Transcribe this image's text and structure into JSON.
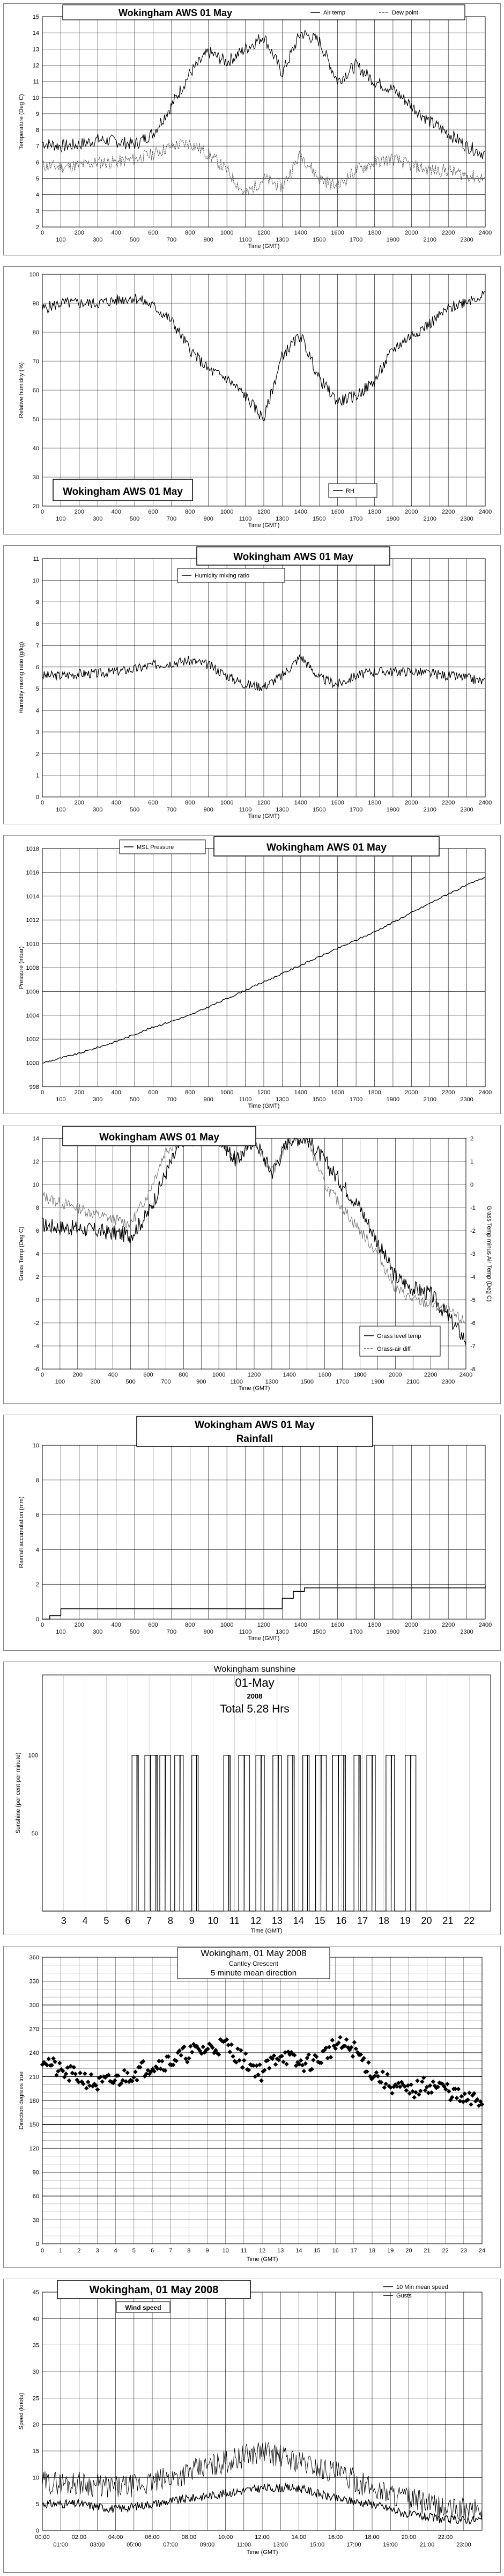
{
  "chart_data": [
    {
      "type": "line",
      "title": "Wokingham AWS 01 May",
      "xlabel": "Time (GMT)",
      "ylabel": "Temperature (Deg C)",
      "xlim": [
        0,
        2400
      ],
      "ylim": [
        2,
        15
      ],
      "xticks_major": [
        "0",
        "200",
        "400",
        "600",
        "800",
        "1000",
        "1200",
        "1400",
        "1600",
        "1800",
        "2000",
        "2200",
        "2400"
      ],
      "xticks_minor": [
        "100",
        "300",
        "500",
        "700",
        "900",
        "1100",
        "1300",
        "1500",
        "1700",
        "1900",
        "2100",
        "2300"
      ],
      "yticks": [
        "2",
        "3",
        "4",
        "5",
        "6",
        "7",
        "8",
        "9",
        "10",
        "11",
        "12",
        "13",
        "14",
        "15"
      ],
      "legend": [
        "Air temp",
        "Dew point"
      ],
      "series": [
        {
          "name": "Air temp",
          "x": [
            0,
            100,
            200,
            300,
            400,
            500,
            600,
            700,
            800,
            900,
            1000,
            1100,
            1200,
            1300,
            1400,
            1500,
            1600,
            1700,
            1800,
            1900,
            2000,
            2100,
            2200,
            2300,
            2400
          ],
          "y": [
            7.2,
            7.0,
            7.1,
            7.4,
            7.3,
            7.1,
            7.8,
            9.5,
            11.5,
            12.8,
            12.2,
            13.0,
            13.8,
            11.5,
            14.0,
            13.5,
            11.0,
            12.0,
            11.0,
            10.5,
            9.5,
            8.5,
            7.8,
            7.0,
            6.5
          ]
        },
        {
          "name": "Dew point",
          "x": [
            0,
            100,
            200,
            300,
            400,
            500,
            600,
            700,
            800,
            900,
            1000,
            1100,
            1200,
            1300,
            1400,
            1500,
            1600,
            1700,
            1800,
            1900,
            2000,
            2100,
            2200,
            2300,
            2400
          ],
          "y": [
            5.8,
            5.7,
            5.8,
            6.0,
            6.0,
            6.2,
            6.5,
            7.0,
            7.2,
            6.5,
            5.5,
            4.0,
            5.0,
            4.5,
            6.5,
            5.0,
            4.5,
            5.5,
            6.0,
            6.2,
            5.8,
            5.5,
            5.5,
            5.2,
            5.0
          ]
        }
      ]
    },
    {
      "type": "line",
      "title": "Wokingham AWS 01 May",
      "xlabel": "Time (GMT)",
      "ylabel": "Relative humidity (%)",
      "xlim": [
        0,
        2400
      ],
      "ylim": [
        20,
        100
      ],
      "xticks_major": [
        "0",
        "200",
        "400",
        "600",
        "800",
        "1000",
        "1200",
        "1400",
        "1600",
        "1800",
        "2000",
        "2200",
        "2400"
      ],
      "xticks_minor": [
        "100",
        "300",
        "500",
        "700",
        "900",
        "1100",
        "1300",
        "1500",
        "1700",
        "1900",
        "2100",
        "2300"
      ],
      "yticks": [
        "20",
        "30",
        "40",
        "50",
        "60",
        "70",
        "80",
        "90",
        "100"
      ],
      "legend": [
        "RH"
      ],
      "series": [
        {
          "name": "RH",
          "x": [
            0,
            100,
            200,
            300,
            400,
            500,
            600,
            700,
            800,
            900,
            1000,
            1100,
            1200,
            1300,
            1400,
            1500,
            1600,
            1700,
            1800,
            1900,
            2000,
            2100,
            2200,
            2300,
            2400
          ],
          "y": [
            88,
            90,
            90,
            90,
            91,
            92,
            89,
            84,
            74,
            67,
            64,
            58,
            50,
            72,
            79,
            64,
            56,
            58,
            63,
            74,
            79,
            83,
            88,
            91,
            93
          ]
        }
      ]
    },
    {
      "type": "line",
      "title": "Wokingham AWS 01 May",
      "xlabel": "Time (GMT)",
      "ylabel": "Humidity mixing ratio (g/kg)",
      "xlim": [
        0,
        2400
      ],
      "ylim": [
        0,
        11
      ],
      "xticks_major": [
        "0",
        "200",
        "400",
        "600",
        "800",
        "1000",
        "1200",
        "1400",
        "1600",
        "1800",
        "2000",
        "2200",
        "2400"
      ],
      "xticks_minor": [
        "100",
        "300",
        "500",
        "700",
        "900",
        "1100",
        "1300",
        "1500",
        "1700",
        "1900",
        "2100",
        "2300"
      ],
      "yticks": [
        "0",
        "1",
        "2",
        "3",
        "4",
        "5",
        "6",
        "7",
        "8",
        "9",
        "10",
        "11"
      ],
      "legend": [
        "Humidity mixing ratio"
      ],
      "series": [
        {
          "name": "Humidity mixing ratio",
          "x": [
            0,
            100,
            200,
            300,
            400,
            500,
            600,
            700,
            800,
            900,
            1000,
            1100,
            1200,
            1300,
            1400,
            1500,
            1600,
            1700,
            1800,
            1900,
            2000,
            2100,
            2200,
            2300,
            2400
          ],
          "y": [
            5.6,
            5.6,
            5.7,
            5.7,
            5.8,
            5.9,
            6.1,
            6.2,
            6.3,
            6.1,
            5.6,
            5.2,
            5.1,
            5.6,
            6.5,
            5.5,
            5.2,
            5.6,
            5.8,
            5.8,
            5.8,
            5.7,
            5.6,
            5.5,
            5.3
          ]
        }
      ]
    },
    {
      "type": "line",
      "title": "Wokingham AWS 01 May",
      "xlabel": "Time (GMT)",
      "ylabel": "Pressure (mbar)",
      "xlim": [
        0,
        2400
      ],
      "ylim": [
        998,
        1018
      ],
      "xticks_major": [
        "0",
        "200",
        "400",
        "600",
        "800",
        "1000",
        "1200",
        "1400",
        "1600",
        "1800",
        "2000",
        "2200",
        "2400"
      ],
      "xticks_minor": [
        "100",
        "300",
        "500",
        "700",
        "900",
        "1100",
        "1300",
        "1500",
        "1700",
        "1900",
        "2100",
        "2300"
      ],
      "yticks": [
        "998",
        "1000",
        "1002",
        "1004",
        "1006",
        "1008",
        "1010",
        "1012",
        "1014",
        "1016",
        "1018"
      ],
      "legend": [
        "MSL Pressure"
      ],
      "series": [
        {
          "name": "MSL Pressure",
          "x": [
            0,
            200,
            400,
            600,
            800,
            1000,
            1200,
            1400,
            1600,
            1800,
            2000,
            2200,
            2400
          ],
          "y": [
            1000.0,
            1000.8,
            1001.8,
            1003.0,
            1004.0,
            1005.4,
            1006.8,
            1008.2,
            1009.6,
            1011.0,
            1012.6,
            1014.2,
            1015.6
          ]
        }
      ]
    },
    {
      "type": "line",
      "title": "Wokingham AWS 01 May",
      "xlabel": "Time (GMT)",
      "ylabel": "Grass Temp (Deg C)",
      "y2label": "Grass Temp minus Air Temp (Deg C)",
      "xlim": [
        0,
        2400
      ],
      "ylim": [
        -6,
        14
      ],
      "y2lim": [
        -8,
        2
      ],
      "xticks_major": [
        "0",
        "200",
        "400",
        "600",
        "800",
        "1000",
        "1200",
        "1400",
        "1600",
        "1800",
        "2000",
        "2200",
        "2400"
      ],
      "xticks_minor": [
        "100",
        "300",
        "500",
        "700",
        "900",
        "1100",
        "1300",
        "1500",
        "1700",
        "1900",
        "2100",
        "2300"
      ],
      "yticks": [
        "-6",
        "-4",
        "-2",
        "0",
        "2",
        "4",
        "6",
        "8",
        "10",
        "12",
        "14"
      ],
      "y2ticks": [
        "-8",
        "-7",
        "-6",
        "-5",
        "-4",
        "-3",
        "-2",
        "-1",
        "0",
        "1",
        "2"
      ],
      "legend": [
        "Grass level temp",
        "Grass-air diff"
      ],
      "series": [
        {
          "name": "Grass level temp",
          "x": [
            0,
            100,
            200,
            300,
            400,
            500,
            600,
            700,
            800,
            900,
            1000,
            1100,
            1200,
            1300,
            1400,
            1500,
            1600,
            1700,
            1800,
            1900,
            2000,
            2100,
            2200,
            2300,
            2400
          ],
          "y": [
            6.5,
            6.3,
            6.2,
            6.0,
            5.8,
            5.6,
            7.5,
            11.0,
            14.0,
            14.0,
            14.0,
            12.0,
            14.0,
            11.0,
            14.0,
            14.0,
            12.0,
            10.0,
            8.0,
            5.0,
            2.0,
            1.0,
            0.5,
            -1.5,
            -3.5
          ]
        },
        {
          "name": "Grass-air diff",
          "x": [
            0,
            100,
            200,
            300,
            400,
            500,
            600,
            700,
            800,
            900,
            1000,
            1100,
            1200,
            1300,
            1400,
            1500,
            1600,
            1700,
            1800,
            1900,
            2000,
            2100,
            2200,
            2300,
            2400
          ],
          "y2": [
            -0.5,
            -0.8,
            -1.0,
            -1.3,
            -1.5,
            -1.7,
            -0.4,
            1.5,
            2.0,
            2.0,
            2.0,
            1.0,
            2.0,
            0.5,
            2.0,
            2.0,
            0.0,
            -1.0,
            -2.0,
            -3.0,
            -4.5,
            -5.0,
            -5.2,
            -5.5,
            -6.0
          ]
        }
      ]
    },
    {
      "type": "line",
      "title": "Wokingham AWS 01 May",
      "subtitle": "Rainfall",
      "xlabel": "Time (GMT)",
      "ylabel": "Rainfall accumulation (mm)",
      "xlim": [
        0,
        2400
      ],
      "ylim": [
        0,
        10
      ],
      "xticks_major": [
        "0",
        "200",
        "400",
        "600",
        "800",
        "1000",
        "1200",
        "1400",
        "1600",
        "1800",
        "2000",
        "2200",
        "2400"
      ],
      "xticks_minor": [
        "100",
        "300",
        "500",
        "700",
        "900",
        "1100",
        "1300",
        "1500",
        "1700",
        "1900",
        "2100",
        "2300"
      ],
      "yticks": [
        "0",
        "2",
        "4",
        "6",
        "8",
        "10"
      ],
      "series": [
        {
          "name": "",
          "x": [
            0,
            40,
            100,
            1150,
            1300,
            1360,
            1420,
            2400
          ],
          "y": [
            0,
            0.2,
            0.6,
            0.6,
            1.2,
            1.6,
            1.8,
            1.9
          ]
        }
      ]
    },
    {
      "type": "line",
      "title": "Wokingham sunshine",
      "subtitle": "01-May",
      "year": "2008",
      "total": "Total 5.28 Hrs",
      "xlabel": "Time (GMT)",
      "ylabel": "Sunshine (per cent per minute)",
      "xlim": [
        2,
        23
      ],
      "ylim": [
        0,
        100
      ],
      "xticks": [
        "3",
        "4",
        "5",
        "6",
        "7",
        "8",
        "9",
        "10",
        "11",
        "12",
        "13",
        "14",
        "15",
        "16",
        "17",
        "18",
        "19",
        "20",
        "21",
        "22"
      ],
      "yticks": [
        "0",
        "50",
        "100"
      ],
      "series": [
        {
          "name": "",
          "on_intervals": [
            [
              6.2,
              6.5
            ],
            [
              6.8,
              7.4
            ],
            [
              7.5,
              8.0
            ],
            [
              8.2,
              8.6
            ],
            [
              9.0,
              9.3
            ],
            [
              10.5,
              10.8
            ],
            [
              11.2,
              11.7
            ],
            [
              12.0,
              12.4
            ],
            [
              12.8,
              13.2
            ],
            [
              13.5,
              13.8
            ],
            [
              14.2,
              14.5
            ],
            [
              14.8,
              15.3
            ],
            [
              15.6,
              16.2
            ],
            [
              16.6,
              16.9
            ],
            [
              17.2,
              17.6
            ],
            [
              18.1,
              18.5
            ],
            [
              19.0,
              19.5
            ]
          ]
        }
      ]
    },
    {
      "type": "scatter",
      "title": "Wokingham, 01 May 2008",
      "subtitle": "Cantley Crescent",
      "subtitle2": "5 minute mean direction",
      "xlabel": "Time (GMT)",
      "ylabel": "Direction degrees true",
      "xlim": [
        0,
        24
      ],
      "ylim": [
        0,
        360
      ],
      "xticks": [
        "0",
        "1",
        "2",
        "3",
        "4",
        "5",
        "6",
        "7",
        "8",
        "9",
        "10",
        "11",
        "12",
        "13",
        "14",
        "15",
        "16",
        "17",
        "18",
        "19",
        "20",
        "21",
        "22",
        "23",
        "24"
      ],
      "yticks": [
        "0",
        "30",
        "60",
        "90",
        "120",
        "150",
        "180",
        "210",
        "240",
        "270",
        "300",
        "330",
        "360"
      ],
      "series": [
        {
          "name": "",
          "x": [
            0,
            1,
            2,
            3,
            4,
            5,
            6,
            7,
            8,
            9,
            10,
            11,
            12,
            13,
            14,
            15,
            16,
            17,
            18,
            19,
            20,
            21,
            22,
            23,
            24
          ],
          "y": [
            235,
            215,
            210,
            200,
            205,
            215,
            225,
            230,
            240,
            245,
            250,
            230,
            215,
            240,
            225,
            230,
            250,
            245,
            215,
            200,
            190,
            200,
            195,
            180,
            180
          ]
        }
      ]
    },
    {
      "type": "line",
      "title": "Wokingham,  01 May 2008",
      "subtitle": "Wind speed",
      "xlabel": "Time (GMT)",
      "ylabel": "Speed (knots)",
      "xlim": [
        0,
        24
      ],
      "ylim": [
        0,
        45
      ],
      "xticks_top": [
        "00:00",
        "02:00",
        "04:00",
        "06:00",
        "08:00",
        "10:00",
        "12:00",
        "14:00",
        "16:00",
        "18:00",
        "20:00",
        "22:00"
      ],
      "xticks_bottom": [
        "01:00",
        "03:00",
        "05:00",
        "07:00",
        "09:00",
        "11:00",
        "13:00",
        "15:00",
        "17:00",
        "19:00",
        "21:00",
        "23:00"
      ],
      "yticks": [
        "0",
        "5",
        "10",
        "15",
        "20",
        "25",
        "30",
        "35",
        "40",
        "45"
      ],
      "legend": [
        "10 Min mean speed",
        "Gusts"
      ],
      "series": [
        {
          "name": "10 Min mean speed",
          "x": [
            0,
            2,
            4,
            6,
            8,
            10,
            12,
            14,
            16,
            18,
            20,
            22,
            24
          ],
          "y": [
            5,
            5,
            4,
            5,
            6,
            7,
            8,
            8,
            6,
            5,
            3,
            2,
            2
          ]
        },
        {
          "name": "Gusts",
          "x": [
            0,
            2,
            4,
            6,
            8,
            10,
            12,
            14,
            16,
            18,
            20,
            22,
            24
          ],
          "y": [
            9,
            9,
            8,
            9,
            11,
            13,
            15,
            13,
            11,
            8,
            6,
            4,
            4
          ]
        }
      ]
    }
  ]
}
